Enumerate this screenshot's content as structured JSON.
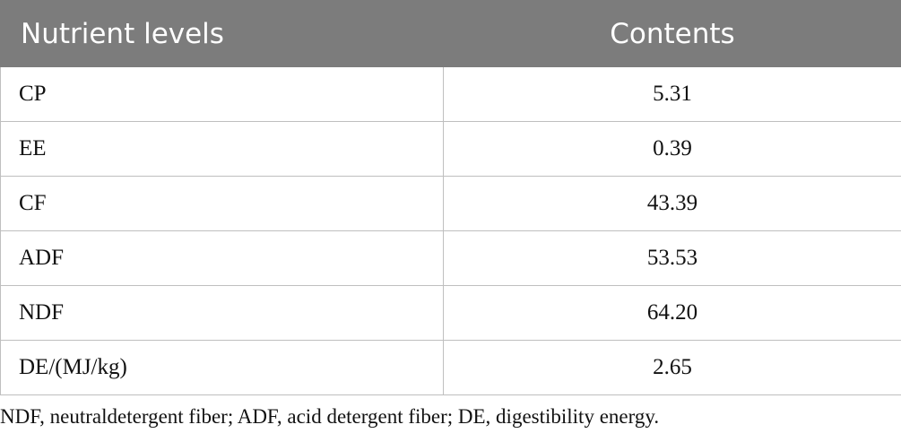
{
  "table": {
    "headers": [
      "Nutrient levels",
      "Contents"
    ],
    "rows": [
      {
        "name": "CP",
        "value": "5.31"
      },
      {
        "name": "EE",
        "value": "0.39"
      },
      {
        "name": "CF",
        "value": "43.39"
      },
      {
        "name": "ADF",
        "value": "53.53"
      },
      {
        "name": "NDF",
        "value": "64.20"
      },
      {
        "name": "DE/(MJ/kg)",
        "value": "2.65"
      }
    ]
  },
  "footnote": "NDF, neutraldetergent fiber; ADF, acid detergent fiber; DE, digestibility energy."
}
